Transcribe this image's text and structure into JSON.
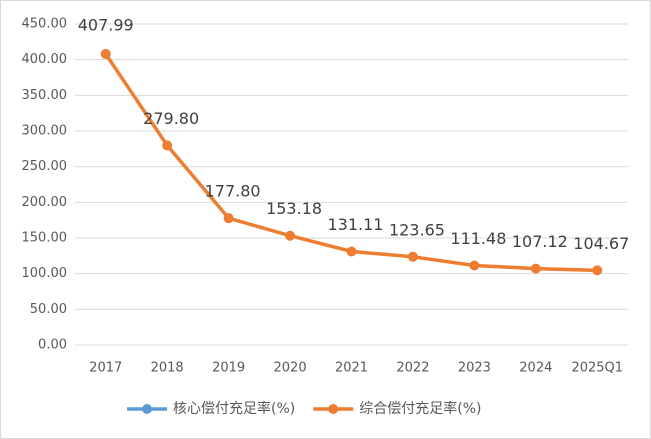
{
  "chart_data": {
    "type": "line",
    "categories": [
      "2017",
      "2018",
      "2019",
      "2020",
      "2021",
      "2022",
      "2023",
      "2024",
      "2025Q1"
    ],
    "series": [
      {
        "name": "核心偿付充足率(%)",
        "color": "#5b9bd5",
        "values": [
          null,
          null,
          null,
          null,
          null,
          null,
          null,
          null,
          null
        ]
      },
      {
        "name": "综合偿付充足率(%)",
        "color": "#ed7d31",
        "values": [
          407.99,
          279.8,
          177.8,
          153.18,
          131.11,
          123.65,
          111.48,
          107.12,
          104.67
        ],
        "value_labels": [
          "407.99",
          "279.80",
          "177.80",
          "153.18",
          "131.11",
          "123.65",
          "111.48",
          "107.12",
          "104.67"
        ]
      }
    ],
    "ylim": [
      0,
      450
    ],
    "yticks": [
      {
        "value": 0,
        "label": "0.00"
      },
      {
        "value": 50,
        "label": "50.00"
      },
      {
        "value": 100,
        "label": "100.00"
      },
      {
        "value": 150,
        "label": "150.00"
      },
      {
        "value": 200,
        "label": "200.00"
      },
      {
        "value": 250,
        "label": "250.00"
      },
      {
        "value": 300,
        "label": "300.00"
      },
      {
        "value": 350,
        "label": "350.00"
      },
      {
        "value": 400,
        "label": "400.00"
      },
      {
        "value": 450,
        "label": "450.00"
      }
    ],
    "grid": true,
    "legend": "bottom"
  }
}
